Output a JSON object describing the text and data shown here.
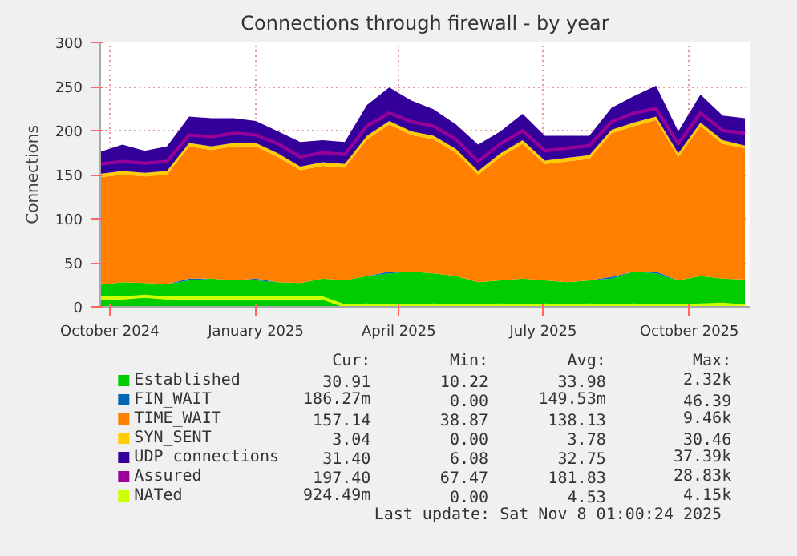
{
  "chart_data": {
    "type": "area",
    "title": "Connections through firewall - by year",
    "ylabel": "Connections",
    "stacked": true,
    "grid": true,
    "legend": "bottom",
    "x": [
      "2024-09-25",
      "2024-10-09",
      "2024-10-23",
      "2024-11-06",
      "2024-11-20",
      "2024-12-04",
      "2024-12-18",
      "2025-01-01",
      "2025-01-15",
      "2025-01-29",
      "2025-02-12",
      "2025-02-26",
      "2025-03-12",
      "2025-03-26",
      "2025-04-09",
      "2025-04-23",
      "2025-05-07",
      "2025-05-21",
      "2025-06-04",
      "2025-06-18",
      "2025-07-02",
      "2025-07-16",
      "2025-07-30",
      "2025-08-13",
      "2025-08-27",
      "2025-09-10",
      "2025-09-24",
      "2025-10-08",
      "2025-10-22",
      "2025-11-05"
    ],
    "xlim": [
      "2024-09-25",
      "2025-11-08"
    ],
    "xticks": [
      {
        "value": "2024-10-01",
        "label": "October 2024"
      },
      {
        "value": "2025-01-01",
        "label": "January 2025"
      },
      {
        "value": "2025-04-01",
        "label": "April 2025"
      },
      {
        "value": "2025-07-01",
        "label": "July 2025"
      },
      {
        "value": "2025-10-01",
        "label": "October 2025"
      }
    ],
    "ylim": [
      0,
      300
    ],
    "yticks": [
      0,
      50,
      100,
      150,
      200,
      250,
      300
    ],
    "series": [
      {
        "name": "Established",
        "color": "#00cc00",
        "values": [
          25,
          28,
          27,
          26,
          30,
          32,
          30,
          30,
          28,
          27,
          32,
          30,
          35,
          38,
          40,
          38,
          35,
          28,
          30,
          32,
          30,
          28,
          30,
          32,
          40,
          38,
          30,
          35,
          32,
          31
        ]
      },
      {
        "name": "FIN_WAIT",
        "color": "#0066b3",
        "values": [
          0,
          0,
          0,
          0,
          2,
          0,
          0,
          2,
          0,
          0,
          0,
          0,
          0,
          2,
          0,
          0,
          0,
          0,
          0,
          0,
          0,
          0,
          0,
          2,
          0,
          2,
          0,
          0,
          0,
          0
        ]
      },
      {
        "name": "TIME_WAIT",
        "color": "#ff8000",
        "values": [
          122,
          122,
          121,
          124,
          150,
          146,
          152,
          150,
          142,
          128,
          128,
          128,
          155,
          167,
          155,
          152,
          140,
          122,
          140,
          153,
          132,
          137,
          138,
          163,
          165,
          172,
          140,
          170,
          153,
          149
        ]
      },
      {
        "name": "SYN_SENT",
        "color": "#ffcc00",
        "values": [
          4,
          4,
          4,
          4,
          4,
          4,
          4,
          4,
          4,
          4,
          4,
          4,
          4,
          4,
          4,
          4,
          4,
          4,
          4,
          4,
          4,
          4,
          4,
          4,
          4,
          4,
          4,
          4,
          4,
          3
        ]
      },
      {
        "name": "UDP connections",
        "color": "#330099",
        "values": [
          25,
          30,
          25,
          28,
          30,
          32,
          28,
          25,
          25,
          28,
          25,
          25,
          35,
          38,
          35,
          30,
          28,
          30,
          25,
          30,
          28,
          25,
          22,
          25,
          30,
          35,
          25,
          32,
          28,
          31
        ]
      },
      {
        "name": "Assured",
        "color": "#990099",
        "type": "line",
        "values": [
          162,
          165,
          163,
          165,
          195,
          193,
          197,
          195,
          185,
          170,
          175,
          173,
          205,
          220,
          210,
          205,
          190,
          165,
          185,
          200,
          177,
          180,
          183,
          210,
          220,
          225,
          185,
          220,
          200,
          197
        ]
      },
      {
        "name": "NATed",
        "color": "#ccff00",
        "type": "line",
        "values": [
          10,
          10,
          12,
          10,
          10,
          10,
          10,
          10,
          10,
          10,
          10,
          1,
          2,
          1,
          1,
          2,
          1,
          1,
          2,
          1,
          2,
          1,
          2,
          1,
          2,
          1,
          1,
          2,
          3,
          1
        ]
      }
    ],
    "annotations": [
      "Cur:",
      "Min:",
      "Avg:",
      "Max:",
      "30.91",
      "10.22",
      "33.98",
      "2.32k",
      "186.27m",
      "0.00",
      "149.53m",
      "46.39",
      "157.14",
      "38.87",
      "138.13",
      "9.46k",
      "3.04",
      "0.00",
      "3.78",
      "30.46",
      "31.40",
      "6.08",
      "32.75",
      "37.39k",
      "197.40",
      "67.47",
      "181.83",
      "28.83k",
      "924.49m",
      "0.00",
      "4.53",
      "4.15k",
      "Last update: Sat Nov  8 01:00:24 2025"
    ]
  }
}
